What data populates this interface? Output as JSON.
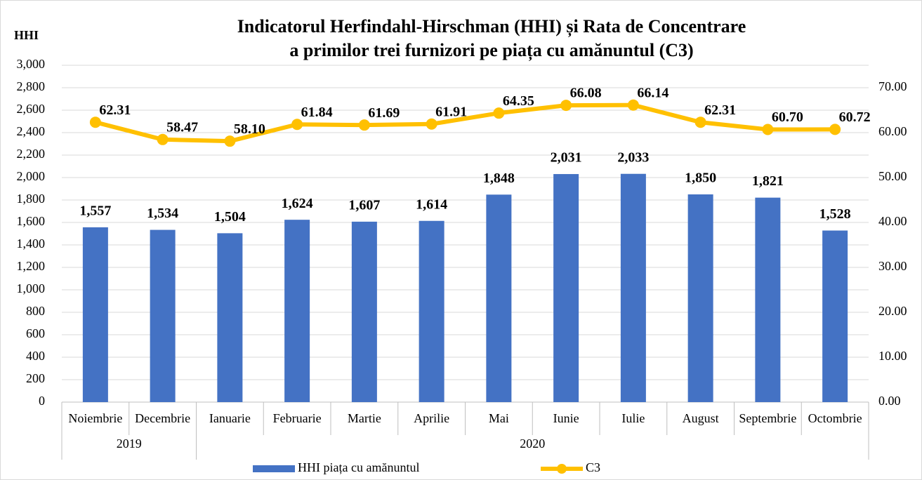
{
  "chart_data": {
    "type": "bar-line",
    "title": [
      "Indicatorul Herfindahl-Hirschman (HHI) și Rata de Concentrare",
      "a primilor trei furnizori pe piața cu amănuntul (C3)"
    ],
    "y_label": "HHI",
    "categories": [
      "Noiembrie",
      "Decembrie",
      "Ianuarie",
      "Februarie",
      "Martie",
      "Aprilie",
      "Mai",
      "Iunie",
      "Iulie",
      "August",
      "Septembrie",
      "Octombrie"
    ],
    "groups": [
      {
        "label": "2019",
        "span": 2
      },
      {
        "label": "2020",
        "span": 10
      }
    ],
    "series": [
      {
        "name": "HHI piața cu amănuntul",
        "type": "bar",
        "color": "#4472c4",
        "values": [
          1557,
          1534,
          1504,
          1624,
          1607,
          1614,
          1848,
          2031,
          2033,
          1850,
          1821,
          1528
        ],
        "value_labels": [
          "1,557",
          "1,534",
          "1,504",
          "1,624",
          "1,607",
          "1,614",
          "1,848",
          "2,031",
          "2,033",
          "1,850",
          "1,821",
          "1,528"
        ]
      },
      {
        "name": "C3",
        "type": "line",
        "axis": "y2",
        "color": "#ffc000",
        "values": [
          62.31,
          58.47,
          58.1,
          61.84,
          61.69,
          61.91,
          64.35,
          66.08,
          66.14,
          62.31,
          60.7,
          60.72
        ],
        "value_labels": [
          "62.31",
          "58.47",
          "58.10",
          "61.84",
          "61.69",
          "61.91",
          "64.35",
          "66.08",
          "66.14",
          "62.31",
          "60.70",
          "60.72"
        ]
      }
    ],
    "ylim": [
      0,
      3000
    ],
    "yticks": [
      0,
      200,
      400,
      600,
      800,
      {
        "value": 1000,
        "label": "1,000"
      },
      {
        "value": 1200,
        "label": "1,200"
      },
      {
        "value": 1400,
        "label": "1,400"
      },
      {
        "value": 1600,
        "label": "1,600"
      },
      {
        "value": 1800,
        "label": "1,800"
      },
      {
        "value": 2000,
        "label": "2,000"
      },
      {
        "value": 2200,
        "label": "2,200"
      },
      {
        "value": 2400,
        "label": "2,400"
      },
      {
        "value": 2600,
        "label": "2,600"
      },
      {
        "value": 2800,
        "label": "2,800"
      },
      {
        "value": 3000,
        "label": "3,000"
      }
    ],
    "y2lim": [
      0,
      75
    ],
    "y2ticks": [
      {
        "value": 0,
        "label": "0.00"
      },
      {
        "value": 10,
        "label": "10.00"
      },
      {
        "value": 20,
        "label": "20.00"
      },
      {
        "value": 30,
        "label": "30.00"
      },
      {
        "value": 40,
        "label": "40.00"
      },
      {
        "value": 50,
        "label": "50.00"
      },
      {
        "value": 60,
        "label": "60.00"
      },
      {
        "value": 70,
        "label": "70.00"
      }
    ],
    "grid": true,
    "legend": "bottom"
  }
}
